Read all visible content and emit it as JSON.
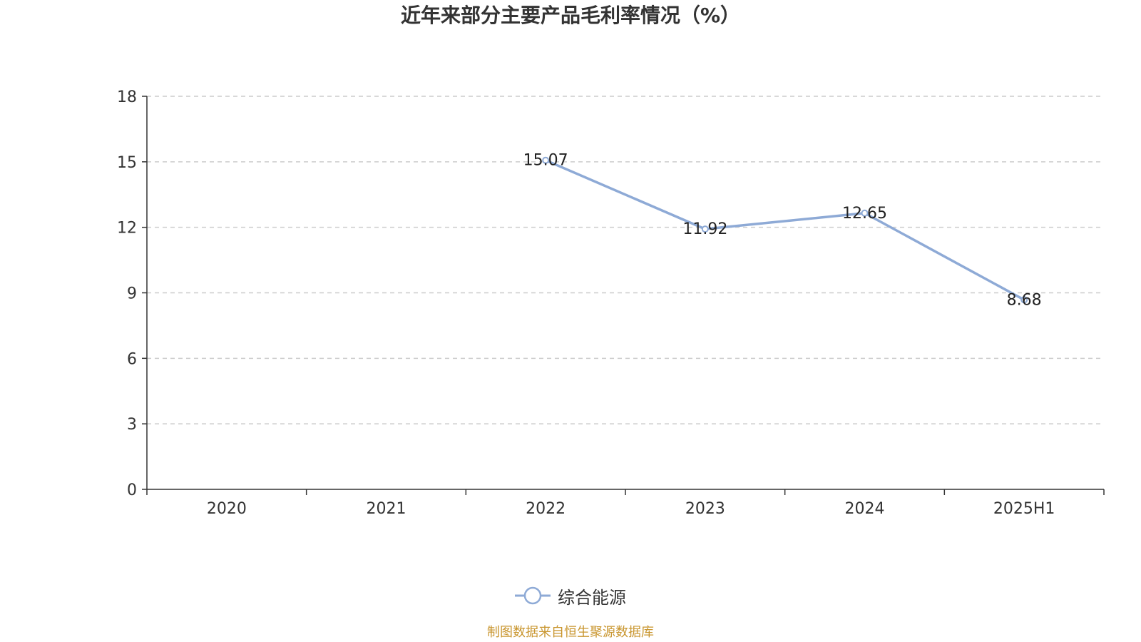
{
  "chart_data": {
    "type": "line",
    "title": "近年来部分主要产品毛利率情况（%）",
    "categories": [
      "2020",
      "2021",
      "2022",
      "2023",
      "2024",
      "2025H1"
    ],
    "series": [
      {
        "name": "综合能源",
        "values": [
          null,
          null,
          15.07,
          11.92,
          12.65,
          8.68
        ],
        "color": "#8eaad6"
      }
    ],
    "ylim": [
      0,
      18
    ],
    "yticks": [
      0,
      3,
      6,
      9,
      12,
      15,
      18
    ],
    "grid": true,
    "legend_position": "bottom"
  },
  "source_note": "制图数据来自恒生聚源数据库"
}
